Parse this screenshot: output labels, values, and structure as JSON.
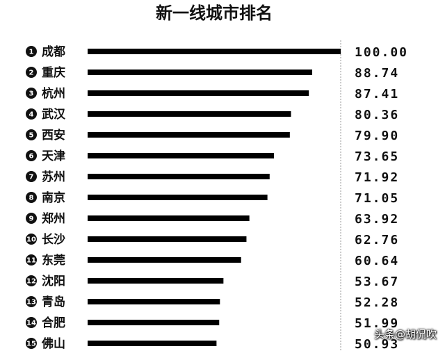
{
  "chart_data": {
    "type": "bar",
    "orientation": "horizontal",
    "title": "新一线城市排名",
    "ranks": [
      "1",
      "2",
      "3",
      "4",
      "5",
      "6",
      "7",
      "8",
      "9",
      "10",
      "11",
      "12",
      "13",
      "14",
      "15"
    ],
    "categories": [
      "成都",
      "重庆",
      "杭州",
      "武汉",
      "西安",
      "天津",
      "苏州",
      "南京",
      "郑州",
      "长沙",
      "东莞",
      "沈阳",
      "青岛",
      "合肥",
      "佛山"
    ],
    "values": [
      100.0,
      88.74,
      87.41,
      80.36,
      79.9,
      73.65,
      71.92,
      71.05,
      63.92,
      62.76,
      60.64,
      53.67,
      52.28,
      51.99,
      50.93
    ],
    "value_labels": [
      "100.00",
      "88.74",
      "87.41",
      "80.36",
      "79.90",
      "73.65",
      "71.92",
      "71.05",
      "63.92",
      "62.76",
      "60.64",
      "53.67",
      "52.28",
      "51.99",
      "50.93"
    ],
    "xlim": [
      0,
      100
    ],
    "bar_color": "#000000",
    "grid": false
  },
  "watermark": "头条@胡侃吹"
}
